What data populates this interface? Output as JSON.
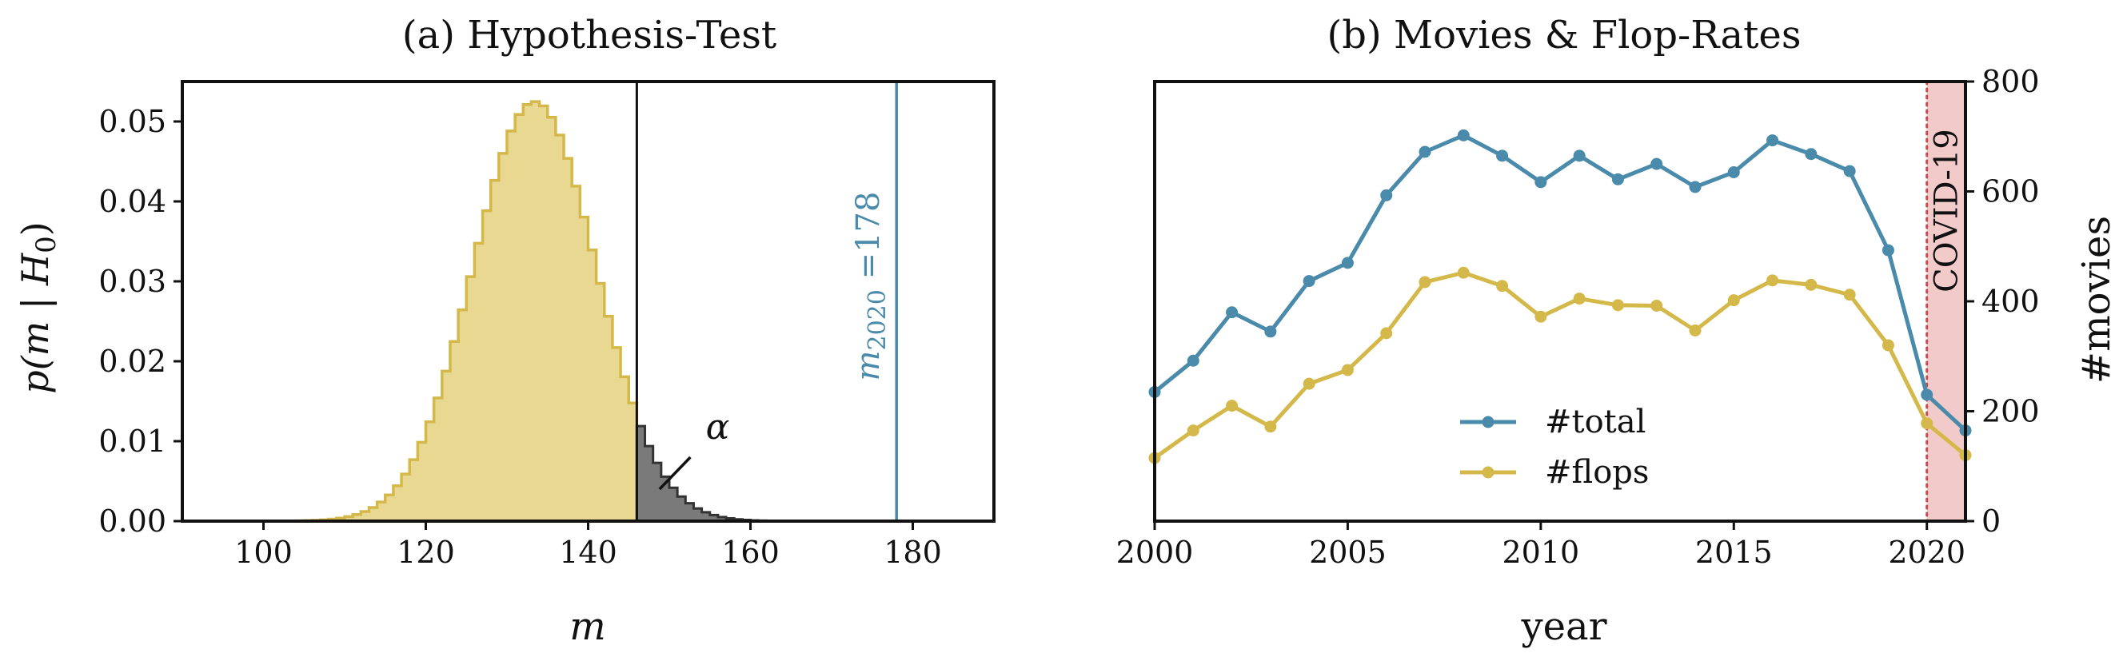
{
  "chart_data": [
    {
      "type": "histogram",
      "title": "(a) Hypothesis-Test",
      "xlabel": "m",
      "ylabel_main": "p(m | H",
      "ylabel_sub": "0",
      "ylabel_close": ")",
      "xlim": [
        90,
        190
      ],
      "ylim": [
        0,
        0.055
      ],
      "xticks": [
        100,
        120,
        140,
        160,
        180
      ],
      "yticks": [
        0.0,
        0.01,
        0.02,
        0.03,
        0.04,
        0.05
      ],
      "ytick_labels": [
        "0.00",
        "0.01",
        "0.02",
        "0.03",
        "0.04",
        "0.05"
      ],
      "dist": {
        "mean": 133.4,
        "sd": 7.6
      },
      "bin_start": 100,
      "bin_end": 166,
      "threshold": 146,
      "observed": 178,
      "observed_label_main": "m",
      "observed_label_sub": "2020",
      "observed_label_value": " =178",
      "alpha_label": "α",
      "colors": {
        "accept": "#e8d892",
        "accept_edge": "#d4b94a",
        "reject": "#7a7a7a",
        "reject_edge": "#333333",
        "observed": "#4a8aaa"
      }
    },
    {
      "type": "line",
      "title": "(b) Movies & Flop-Rates",
      "xlabel": "year",
      "ylabel": "#movies",
      "xlim": [
        2000,
        2021
      ],
      "ylim": [
        0,
        800
      ],
      "xticks": [
        2000,
        2005,
        2010,
        2015,
        2020
      ],
      "yticks": [
        0,
        200,
        400,
        600,
        800
      ],
      "x": [
        2000,
        2001,
        2002,
        2003,
        2004,
        2005,
        2006,
        2007,
        2008,
        2009,
        2010,
        2011,
        2012,
        2013,
        2014,
        2015,
        2016,
        2017,
        2018,
        2019,
        2020,
        2021
      ],
      "series": [
        {
          "name": "#total",
          "color": "#4a8aaa",
          "values": [
            235,
            292,
            380,
            345,
            437,
            470,
            593,
            672,
            702,
            665,
            617,
            665,
            622,
            650,
            608,
            635,
            693,
            668,
            637,
            493,
            230,
            165
          ]
        },
        {
          "name": "#flops",
          "color": "#d4b94a",
          "values": [
            115,
            165,
            210,
            172,
            250,
            275,
            342,
            435,
            452,
            428,
            372,
            405,
            393,
            392,
            347,
            402,
            438,
            430,
            412,
            320,
            178,
            120
          ]
        }
      ],
      "covid_start": 2020,
      "covid_label": "COVID-19",
      "covid_colors": {
        "fill": "#f2caca",
        "line": "#c44e4e",
        "text": "#c43d3d"
      },
      "legend_position": "lower-center"
    }
  ]
}
